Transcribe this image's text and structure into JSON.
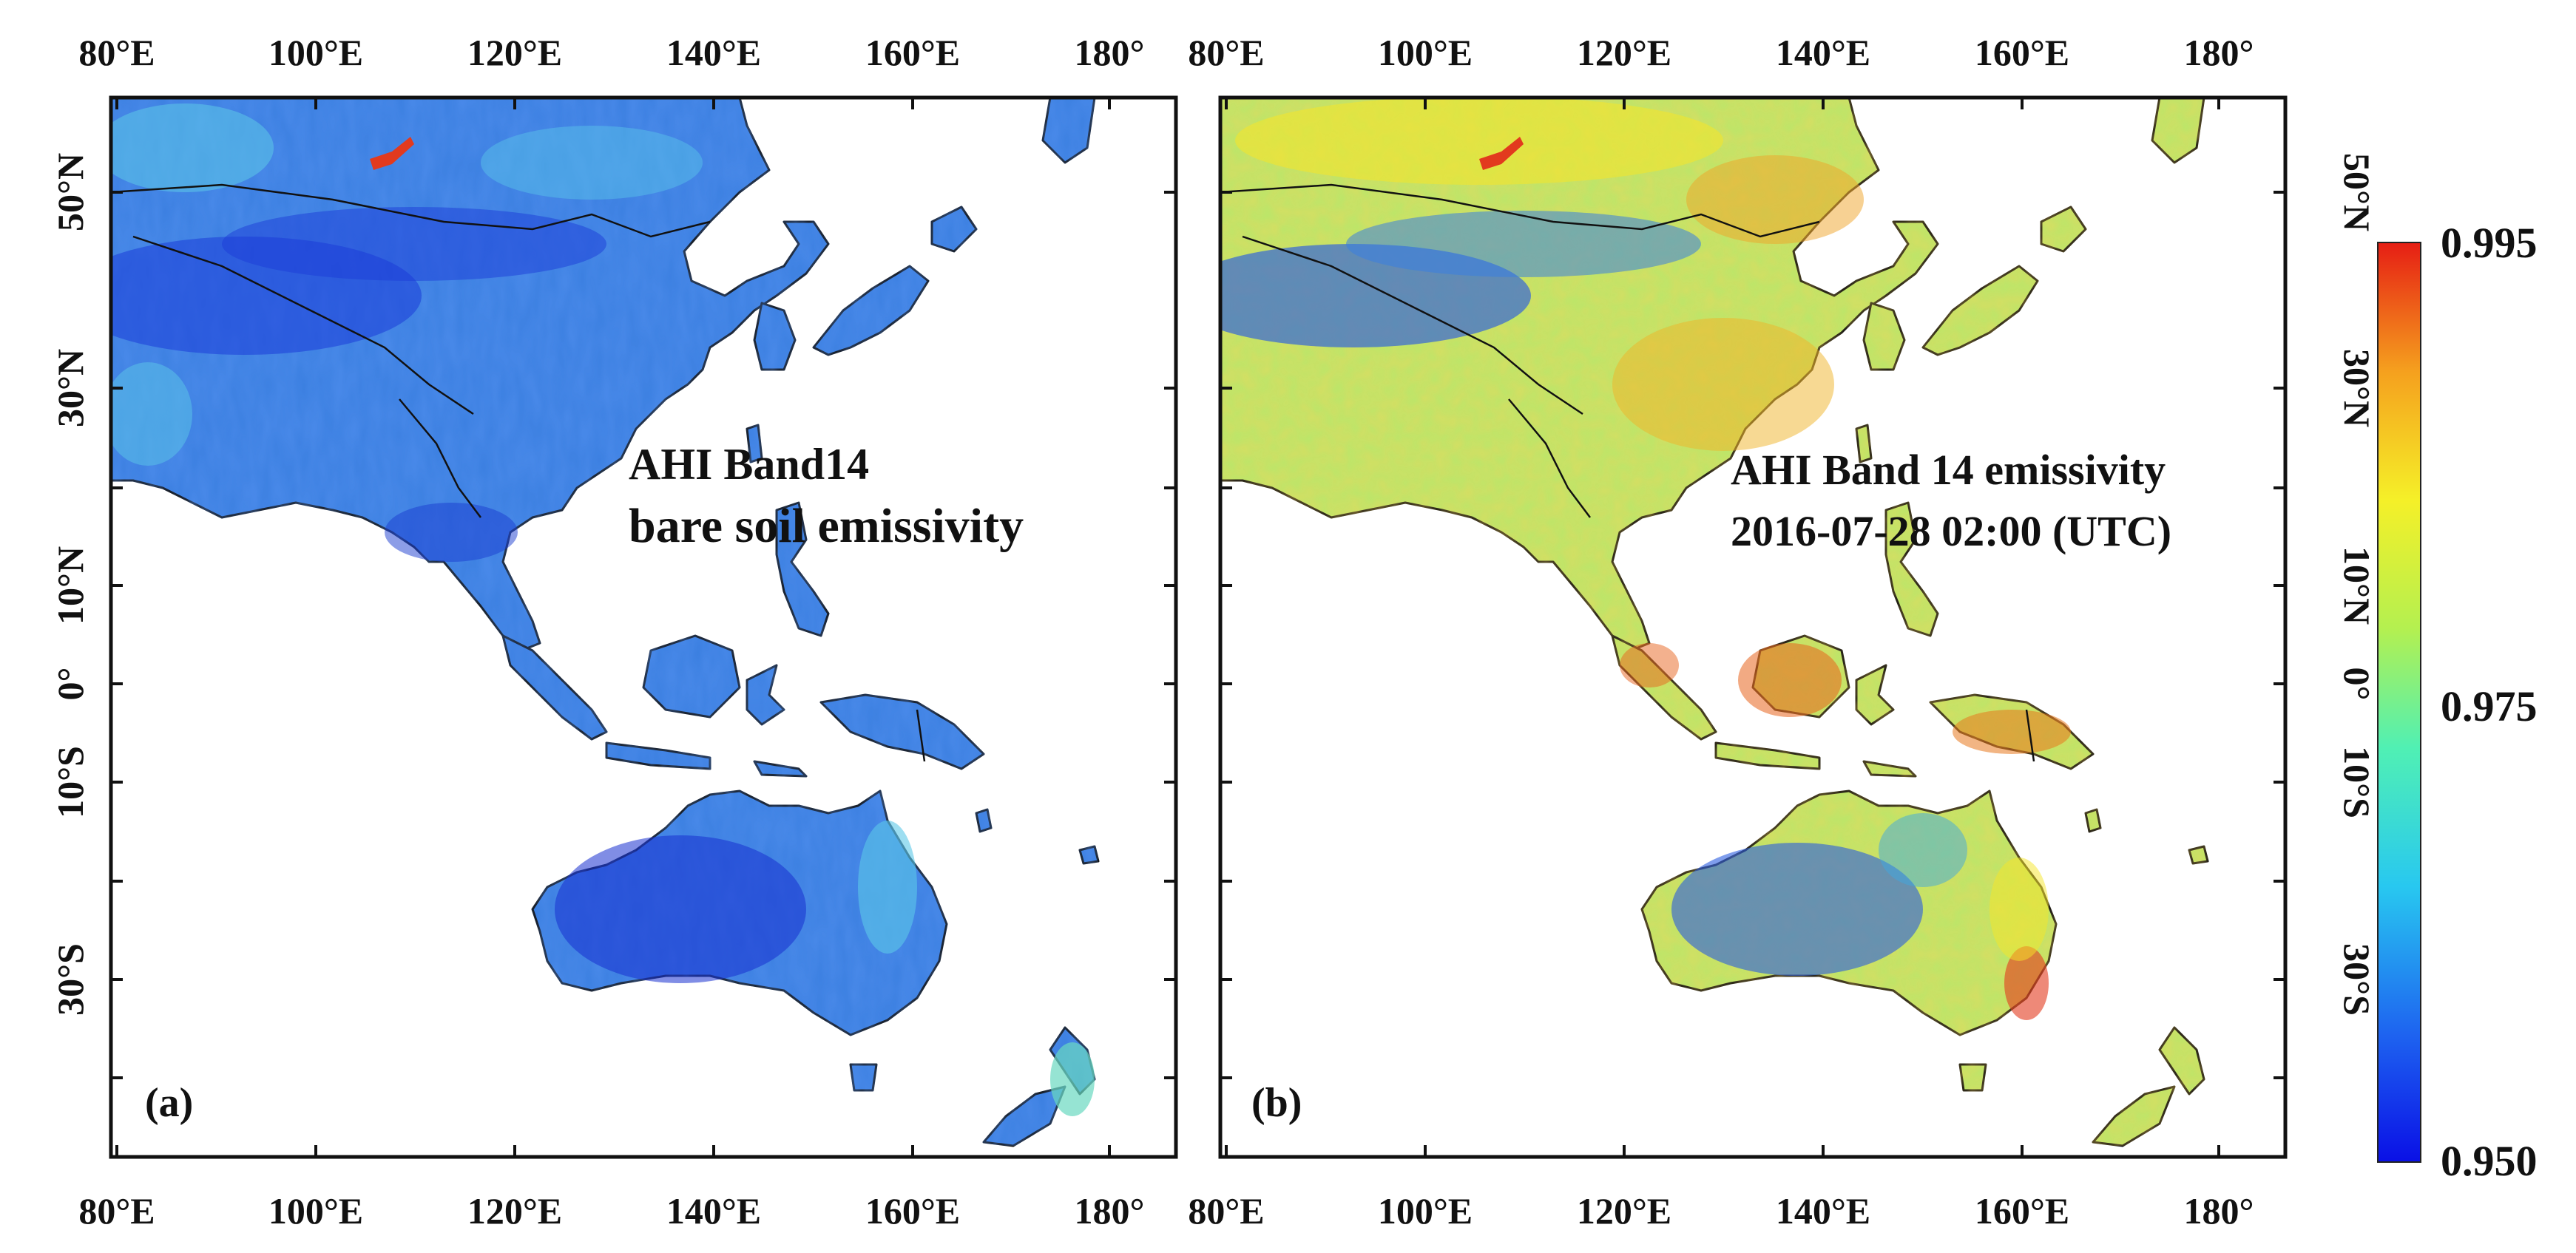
{
  "figure": {
    "panels": [
      {
        "id": "a",
        "panel_label": "(a)",
        "title_line1": "AHI Band14",
        "title_line2": "bare soil emissivity"
      },
      {
        "id": "b",
        "panel_label": "(b)",
        "title_line1": "AHI Band 14 emissivity",
        "title_line2": "2016-07-28 02:00 (UTC)"
      }
    ],
    "lon_labels": [
      "80°E",
      "100°E",
      "120°E",
      "140°E",
      "160°E",
      "180°"
    ],
    "lat_labels": [
      "50°N",
      "30°N",
      "10°N",
      "0°",
      "10°S",
      "30°S"
    ]
  },
  "colorbar": {
    "max_label": "0.995",
    "mid_label": "0.975",
    "min_label": "0.950",
    "max_value": 0.995,
    "mid_value": 0.975,
    "min_value": 0.95,
    "colors": [
      "#0a10e6",
      "#1e64f0",
      "#28c8f0",
      "#50f0b4",
      "#b4f050",
      "#f5f028",
      "#f5a01e",
      "#e61e14"
    ]
  },
  "map_colors": {
    "ocean": "#ffffff",
    "coast": "#111111",
    "panel_a_land": "#3b7fe0",
    "panel_a_dark": "#1c3cd8",
    "panel_a_light": "#5cc8e8",
    "panel_b_land": "#b9e66a",
    "panel_b_warm": "#f0b428",
    "panel_b_dark": "#2a5ce0"
  }
}
